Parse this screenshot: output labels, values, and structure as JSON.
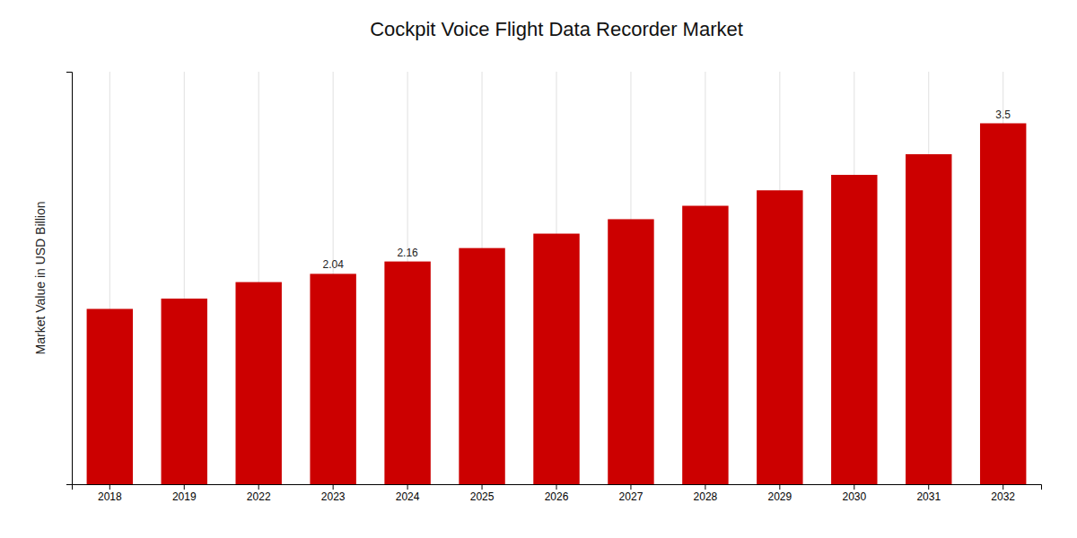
{
  "chart_data": {
    "type": "bar",
    "title": "Cockpit Voice Flight Data Recorder Market",
    "ylabel": "Market Value in USD Billion",
    "categories": [
      "2018",
      "2019",
      "2022",
      "2023",
      "2024",
      "2025",
      "2026",
      "2027",
      "2028",
      "2029",
      "2030",
      "2031",
      "2032"
    ],
    "values": [
      1.7,
      1.8,
      1.96,
      2.04,
      2.16,
      2.29,
      2.43,
      2.57,
      2.7,
      2.85,
      3.0,
      3.2,
      3.5
    ],
    "value_labels": [
      null,
      null,
      null,
      "2.04",
      "2.16",
      null,
      null,
      null,
      null,
      null,
      null,
      null,
      "3.5"
    ],
    "color": "#CC0000",
    "ylim": [
      0,
      4.0
    ],
    "yticks": [],
    "grid": true,
    "tick_labels": "x"
  }
}
